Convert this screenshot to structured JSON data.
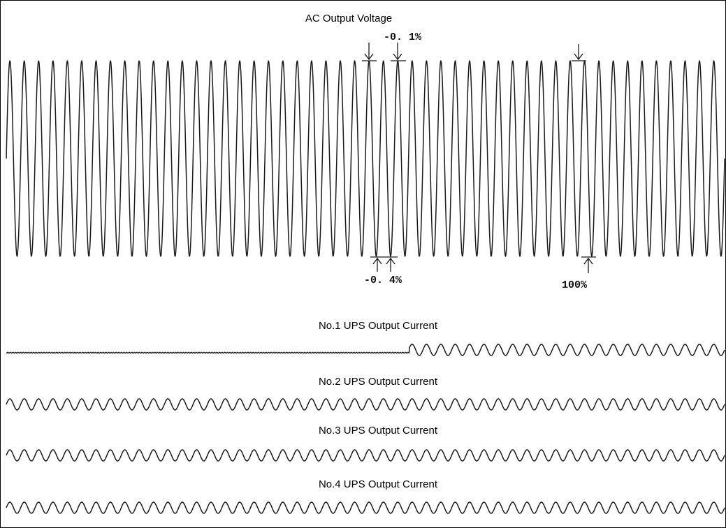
{
  "chart_data": [
    {
      "type": "line",
      "title": "AC Output Voltage",
      "cycles": 50,
      "annotations": [
        {
          "text": "-0. 1%",
          "position": "top"
        },
        {
          "text": "-0. 4%",
          "position": "bottom"
        },
        {
          "text": "100%",
          "position": "bottom"
        }
      ]
    },
    {
      "type": "line",
      "title": "No.1 UPS Output Current",
      "cycles": 50,
      "note": "flat until about mid-record, then sinusoidal"
    },
    {
      "type": "line",
      "title": "No.2 UPS Output Current",
      "cycles": 50
    },
    {
      "type": "line",
      "title": "No.3 UPS Output Current",
      "cycles": 50
    },
    {
      "type": "line",
      "title": "No.4 UPS Output Current",
      "cycles": 50
    }
  ]
}
